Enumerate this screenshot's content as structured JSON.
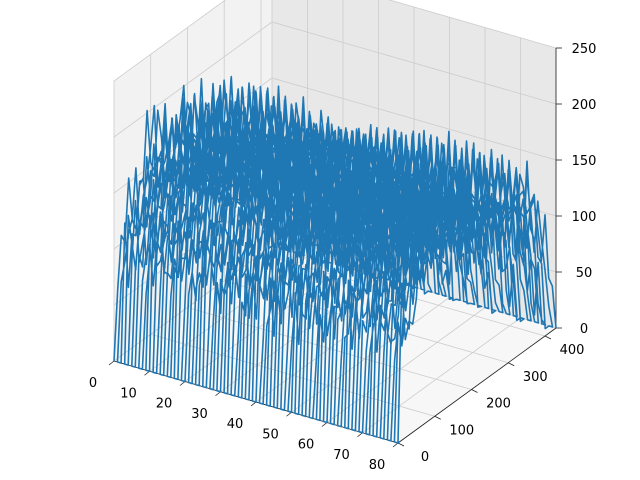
{
  "chart_data": {
    "type": "line",
    "projection": "3d",
    "title": "",
    "xlabel": "",
    "ylabel": "",
    "zlabel": "",
    "xlim": [
      0,
      80
    ],
    "ylim": [
      0,
      430
    ],
    "zlim": [
      0,
      250
    ],
    "x_ticks": [
      0,
      10,
      20,
      30,
      40,
      50,
      60,
      70,
      80
    ],
    "y_ticks": [
      0,
      100,
      200,
      300,
      400
    ],
    "z_ticks": [
      0,
      50,
      100,
      150,
      200,
      250
    ],
    "x_tick_labels": [
      "0",
      "10",
      "20",
      "30",
      "40",
      "50",
      "60",
      "70",
      "80"
    ],
    "y_tick_labels": [
      "0",
      "100",
      "200",
      "300",
      "400"
    ],
    "z_tick_labels": [
      "0",
      "50",
      "100",
      "150",
      "200",
      "250"
    ],
    "grid": true,
    "legend": "none",
    "series_color": "#1f77b4",
    "series_description": "one continuous polyline sweeping x = 0..80; at each x the line rises from 0 at y = 0, traces an intensity profile across y, and returns to 0",
    "profile": {
      "y": [
        0,
        1,
        20,
        60,
        100,
        140,
        180,
        220,
        260,
        300,
        340,
        380,
        410,
        430
      ],
      "z": [
        0,
        90,
        100,
        130,
        170,
        140,
        170,
        130,
        150,
        140,
        120,
        120,
        50,
        0
      ]
    }
  },
  "colors": {
    "line": "#1f77b4",
    "pane_left": "#f2f2f2",
    "pane_right": "#e8e8e8",
    "pane_bottom": "#f7f7f7",
    "grid": "#cccccc"
  }
}
